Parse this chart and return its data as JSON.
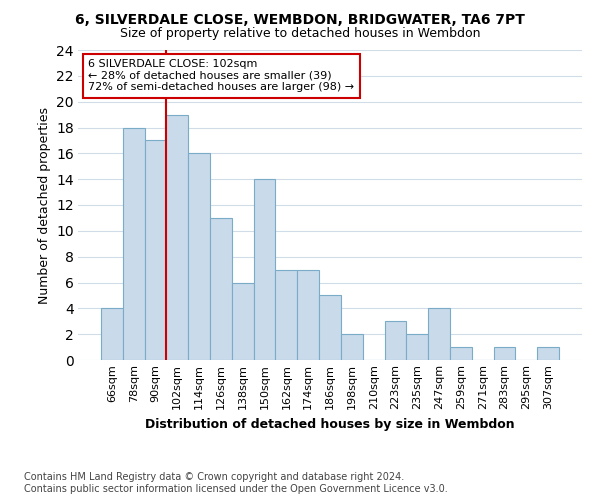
{
  "title1": "6, SILVERDALE CLOSE, WEMBDON, BRIDGWATER, TA6 7PT",
  "title2": "Size of property relative to detached houses in Wembdon",
  "xlabel": "Distribution of detached houses by size in Wembdon",
  "ylabel": "Number of detached properties",
  "footer1": "Contains HM Land Registry data © Crown copyright and database right 2024.",
  "footer2": "Contains public sector information licensed under the Open Government Licence v3.0.",
  "annotation_line1": "6 SILVERDALE CLOSE: 102sqm",
  "annotation_line2": "← 28% of detached houses are smaller (39)",
  "annotation_line3": "72% of semi-detached houses are larger (98) →",
  "bar_color": "#c9daea",
  "bar_edge_color": "#7aacc8",
  "vline_color": "#cc0000",
  "vline_x_index": 3,
  "categories": [
    "66sqm",
    "78sqm",
    "90sqm",
    "102sqm",
    "114sqm",
    "126sqm",
    "138sqm",
    "150sqm",
    "162sqm",
    "174sqm",
    "186sqm",
    "198sqm",
    "210sqm",
    "223sqm",
    "235sqm",
    "247sqm",
    "259sqm",
    "271sqm",
    "283sqm",
    "295sqm",
    "307sqm"
  ],
  "values": [
    4,
    18,
    17,
    19,
    16,
    11,
    6,
    14,
    7,
    7,
    5,
    2,
    0,
    3,
    2,
    4,
    1,
    0,
    1,
    0,
    1
  ],
  "ylim": [
    0,
    24
  ],
  "yticks": [
    0,
    2,
    4,
    6,
    8,
    10,
    12,
    14,
    16,
    18,
    20,
    22,
    24
  ],
  "bg_color": "#ffffff",
  "axes_bg_color": "#ffffff",
  "grid_color": "#d0dce8",
  "annotation_box_color": "#ffffff",
  "annotation_box_edge": "#cc0000",
  "title1_fontsize": 10,
  "title2_fontsize": 9,
  "ylabel_fontsize": 9,
  "xlabel_fontsize": 9,
  "tick_fontsize": 8,
  "annotation_fontsize": 8,
  "footer_fontsize": 7
}
